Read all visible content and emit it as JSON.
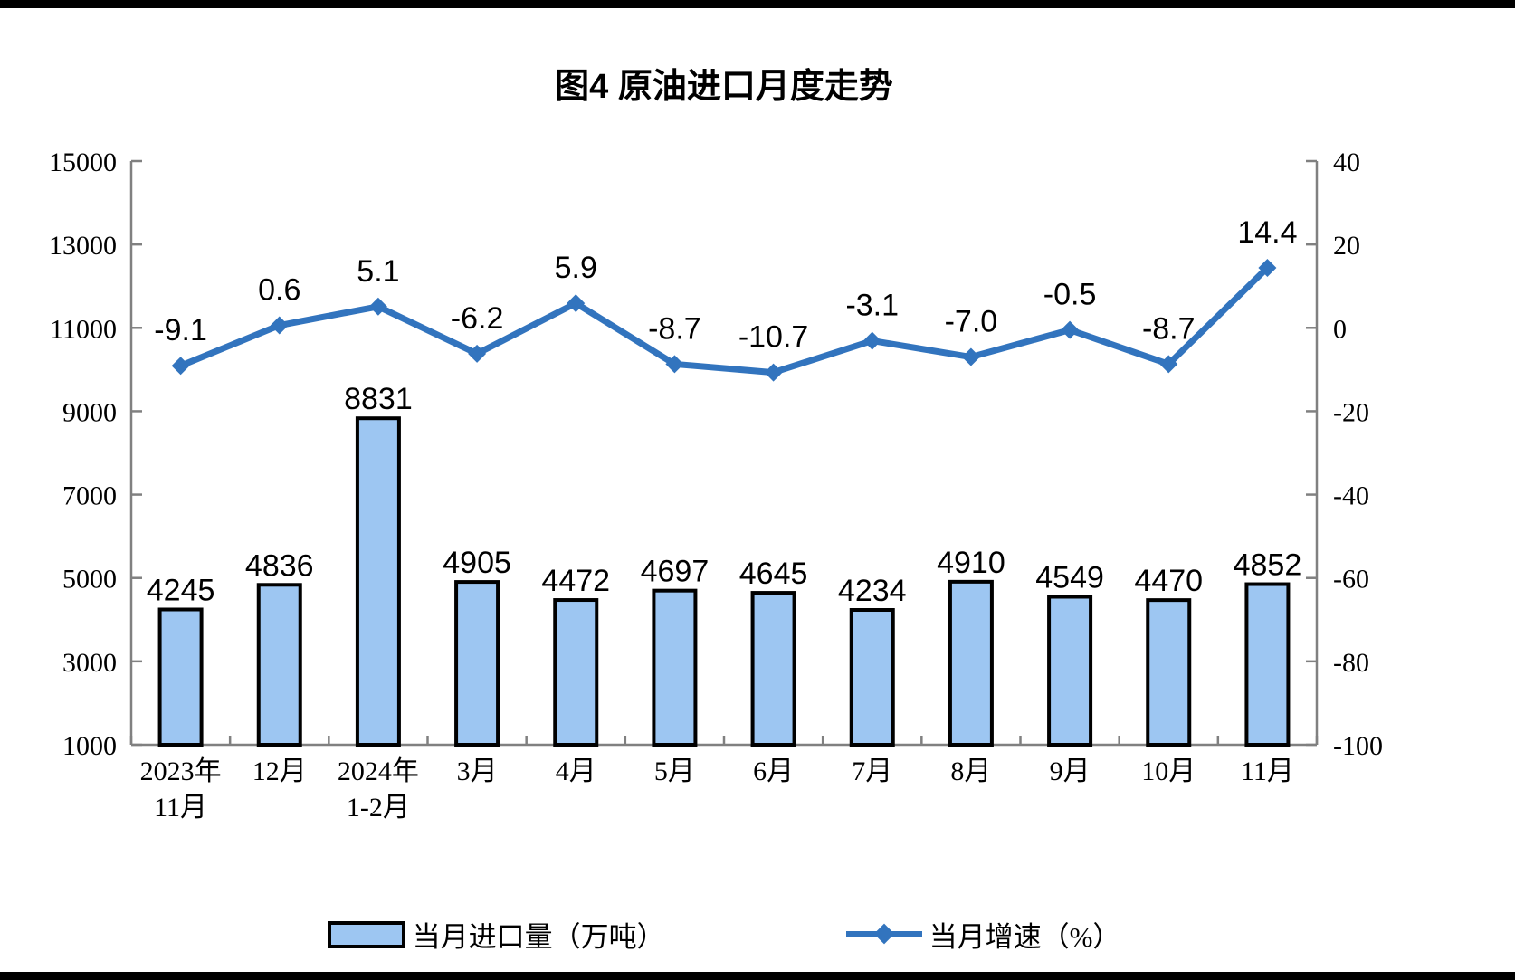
{
  "chart_data": {
    "type": "bar+line combo",
    "title": "图4 原油进口月度走势",
    "categories": [
      "2023年\n11月",
      "12月",
      "2024年\n1-2月",
      "3月",
      "4月",
      "5月",
      "6月",
      "7月",
      "8月",
      "9月",
      "10月",
      "11月"
    ],
    "series": [
      {
        "name": "当月进口量（万吨）",
        "type": "bar",
        "axis": "left",
        "values": [
          4245,
          4836,
          8831,
          4905,
          4472,
          4697,
          4645,
          4234,
          4910,
          4549,
          4470,
          4852
        ]
      },
      {
        "name": "当月增速（%）",
        "type": "line",
        "axis": "right",
        "marker": "diamond",
        "values": [
          -9.1,
          0.6,
          5.1,
          -6.2,
          5.9,
          -8.7,
          -10.7,
          -3.1,
          -7.0,
          -0.5,
          -8.7,
          14.4
        ]
      }
    ],
    "left_axis": {
      "min": 1000,
      "max": 15000,
      "step": 2000,
      "ticks": [
        15000,
        13000,
        11000,
        9000,
        7000,
        5000,
        3000,
        1000
      ]
    },
    "right_axis": {
      "min": -100,
      "max": 40,
      "step": 20,
      "ticks": [
        40,
        20,
        0,
        -20,
        -40,
        -60,
        -80,
        -100
      ]
    },
    "grid": false,
    "legend_position": "bottom",
    "colors": {
      "bar_fill": "#9DC6F2",
      "bar_border": "#000000",
      "line": "#3274BE",
      "axis": "#808080",
      "text": "#000000"
    }
  }
}
